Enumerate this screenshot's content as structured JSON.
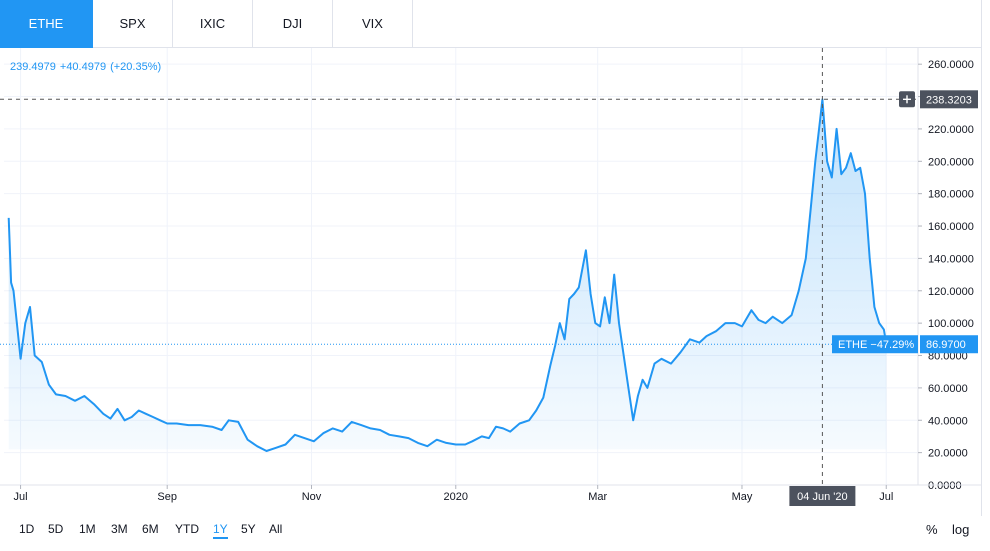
{
  "tabs": [
    {
      "label": "ETHE",
      "active": true
    },
    {
      "label": "SPX",
      "active": false
    },
    {
      "label": "IXIC",
      "active": false
    },
    {
      "label": "DJI",
      "active": false
    },
    {
      "label": "VIX",
      "active": false
    }
  ],
  "legend": {
    "value": "239.4979",
    "change": "+40.4979",
    "change_pct": "(+20.35%)"
  },
  "crosshair": {
    "price_label": "238.3203",
    "date_label": "04 Jun '20",
    "plus_icon": "plus-icon"
  },
  "last_price": {
    "symbol_label": "ETHE −47.29%",
    "value_label": "86.9700"
  },
  "ranges": [
    {
      "label": "1D",
      "active": false
    },
    {
      "label": "5D",
      "active": false
    },
    {
      "label": "1M",
      "active": false
    },
    {
      "label": "3M",
      "active": false
    },
    {
      "label": "6M",
      "active": false
    },
    {
      "label": "YTD",
      "active": false
    },
    {
      "label": "1Y",
      "active": true
    },
    {
      "label": "5Y",
      "active": false
    },
    {
      "label": "All",
      "active": false
    }
  ],
  "toggles": {
    "percent": "%",
    "log": "log"
  },
  "colors": {
    "line": "#2196f3",
    "accent": "#2196f3",
    "crosshair_label_bg": "#4c525e",
    "grid": "#f0f3fa"
  },
  "chart_data": {
    "type": "area",
    "title": "",
    "xlabel": "",
    "ylabel": "",
    "ylim": [
      0,
      270
    ],
    "y_ticks": [
      "0.0000",
      "20.0000",
      "40.0000",
      "60.0000",
      "80.0000",
      "100.0000",
      "120.0000",
      "140.0000",
      "160.0000",
      "180.0000",
      "200.0000",
      "220.0000",
      "240.0000",
      "260.0000"
    ],
    "x_ticks": [
      {
        "label": "Jul",
        "x": "2019-07-01"
      },
      {
        "label": "Sep",
        "x": "2019-09-01"
      },
      {
        "label": "Nov",
        "x": "2019-11-01"
      },
      {
        "label": "2020",
        "x": "2020-01-01"
      },
      {
        "label": "Mar",
        "x": "2020-03-01"
      },
      {
        "label": "May",
        "x": "2020-05-01"
      },
      {
        "label": "Jul",
        "x": "2020-07-01"
      }
    ],
    "xlim": [
      "2019-06-24",
      "2020-07-14"
    ],
    "series": [
      {
        "points": [
          [
            "2019-06-26",
            165
          ],
          [
            "2019-06-27",
            125
          ],
          [
            "2019-06-28",
            120
          ],
          [
            "2019-07-01",
            78
          ],
          [
            "2019-07-03",
            100
          ],
          [
            "2019-07-05",
            110
          ],
          [
            "2019-07-07",
            80
          ],
          [
            "2019-07-10",
            76
          ],
          [
            "2019-07-13",
            62
          ],
          [
            "2019-07-16",
            56
          ],
          [
            "2019-07-20",
            55
          ],
          [
            "2019-07-24",
            52
          ],
          [
            "2019-07-28",
            55
          ],
          [
            "2019-08-01",
            50
          ],
          [
            "2019-08-05",
            44
          ],
          [
            "2019-08-08",
            41
          ],
          [
            "2019-08-11",
            47
          ],
          [
            "2019-08-14",
            40
          ],
          [
            "2019-08-17",
            42
          ],
          [
            "2019-08-20",
            46
          ],
          [
            "2019-08-23",
            44
          ],
          [
            "2019-08-26",
            42
          ],
          [
            "2019-08-29",
            40
          ],
          [
            "2019-09-01",
            38
          ],
          [
            "2019-09-05",
            38
          ],
          [
            "2019-09-10",
            37
          ],
          [
            "2019-09-15",
            37
          ],
          [
            "2019-09-20",
            36
          ],
          [
            "2019-09-24",
            34
          ],
          [
            "2019-09-27",
            40
          ],
          [
            "2019-10-01",
            39
          ],
          [
            "2019-10-05",
            28
          ],
          [
            "2019-10-09",
            24
          ],
          [
            "2019-10-13",
            21
          ],
          [
            "2019-10-17",
            23
          ],
          [
            "2019-10-21",
            25
          ],
          [
            "2019-10-25",
            31
          ],
          [
            "2019-10-29",
            29
          ],
          [
            "2019-11-02",
            27
          ],
          [
            "2019-11-06",
            32
          ],
          [
            "2019-11-10",
            35
          ],
          [
            "2019-11-14",
            33
          ],
          [
            "2019-11-18",
            39
          ],
          [
            "2019-11-22",
            37
          ],
          [
            "2019-11-26",
            35
          ],
          [
            "2019-11-30",
            34
          ],
          [
            "2019-12-04",
            31
          ],
          [
            "2019-12-08",
            30
          ],
          [
            "2019-12-12",
            29
          ],
          [
            "2019-12-16",
            26
          ],
          [
            "2019-12-20",
            24
          ],
          [
            "2019-12-24",
            28
          ],
          [
            "2019-12-28",
            26
          ],
          [
            "2020-01-01",
            25
          ],
          [
            "2020-01-05",
            25
          ],
          [
            "2020-01-08",
            27
          ],
          [
            "2020-01-12",
            30
          ],
          [
            "2020-01-15",
            29
          ],
          [
            "2020-01-18",
            36
          ],
          [
            "2020-01-21",
            35
          ],
          [
            "2020-01-24",
            33
          ],
          [
            "2020-01-28",
            38
          ],
          [
            "2020-02-01",
            40
          ],
          [
            "2020-02-04",
            46
          ],
          [
            "2020-02-07",
            54
          ],
          [
            "2020-02-10",
            74
          ],
          [
            "2020-02-12",
            86
          ],
          [
            "2020-02-14",
            100
          ],
          [
            "2020-02-16",
            90
          ],
          [
            "2020-02-18",
            115
          ],
          [
            "2020-02-20",
            118
          ],
          [
            "2020-02-22",
            122
          ],
          [
            "2020-02-25",
            145
          ],
          [
            "2020-02-27",
            118
          ],
          [
            "2020-02-29",
            100
          ],
          [
            "2020-03-02",
            98
          ],
          [
            "2020-03-04",
            116
          ],
          [
            "2020-03-06",
            100
          ],
          [
            "2020-03-08",
            130
          ],
          [
            "2020-03-10",
            100
          ],
          [
            "2020-03-12",
            80
          ],
          [
            "2020-03-14",
            60
          ],
          [
            "2020-03-16",
            40
          ],
          [
            "2020-03-18",
            55
          ],
          [
            "2020-03-20",
            65
          ],
          [
            "2020-03-22",
            60
          ],
          [
            "2020-03-25",
            75
          ],
          [
            "2020-03-28",
            78
          ],
          [
            "2020-04-01",
            75
          ],
          [
            "2020-04-05",
            82
          ],
          [
            "2020-04-09",
            90
          ],
          [
            "2020-04-13",
            88
          ],
          [
            "2020-04-16",
            92
          ],
          [
            "2020-04-20",
            95
          ],
          [
            "2020-04-24",
            100
          ],
          [
            "2020-04-28",
            100
          ],
          [
            "2020-05-01",
            98
          ],
          [
            "2020-05-05",
            108
          ],
          [
            "2020-05-08",
            102
          ],
          [
            "2020-05-11",
            100
          ],
          [
            "2020-05-14",
            104
          ],
          [
            "2020-05-18",
            100
          ],
          [
            "2020-05-22",
            105
          ],
          [
            "2020-05-25",
            120
          ],
          [
            "2020-05-28",
            140
          ],
          [
            "2020-05-30",
            170
          ],
          [
            "2020-06-01",
            200
          ],
          [
            "2020-06-03",
            225
          ],
          [
            "2020-06-04",
            238.3
          ],
          [
            "2020-06-06",
            200
          ],
          [
            "2020-06-08",
            190
          ],
          [
            "2020-06-10",
            220
          ],
          [
            "2020-06-12",
            192
          ],
          [
            "2020-06-14",
            196
          ],
          [
            "2020-06-16",
            205
          ],
          [
            "2020-06-18",
            194
          ],
          [
            "2020-06-20",
            196
          ],
          [
            "2020-06-22",
            180
          ],
          [
            "2020-06-24",
            140
          ],
          [
            "2020-06-26",
            110
          ],
          [
            "2020-06-28",
            100
          ],
          [
            "2020-06-30",
            96
          ],
          [
            "2020-07-01",
            86.97
          ]
        ]
      }
    ]
  }
}
